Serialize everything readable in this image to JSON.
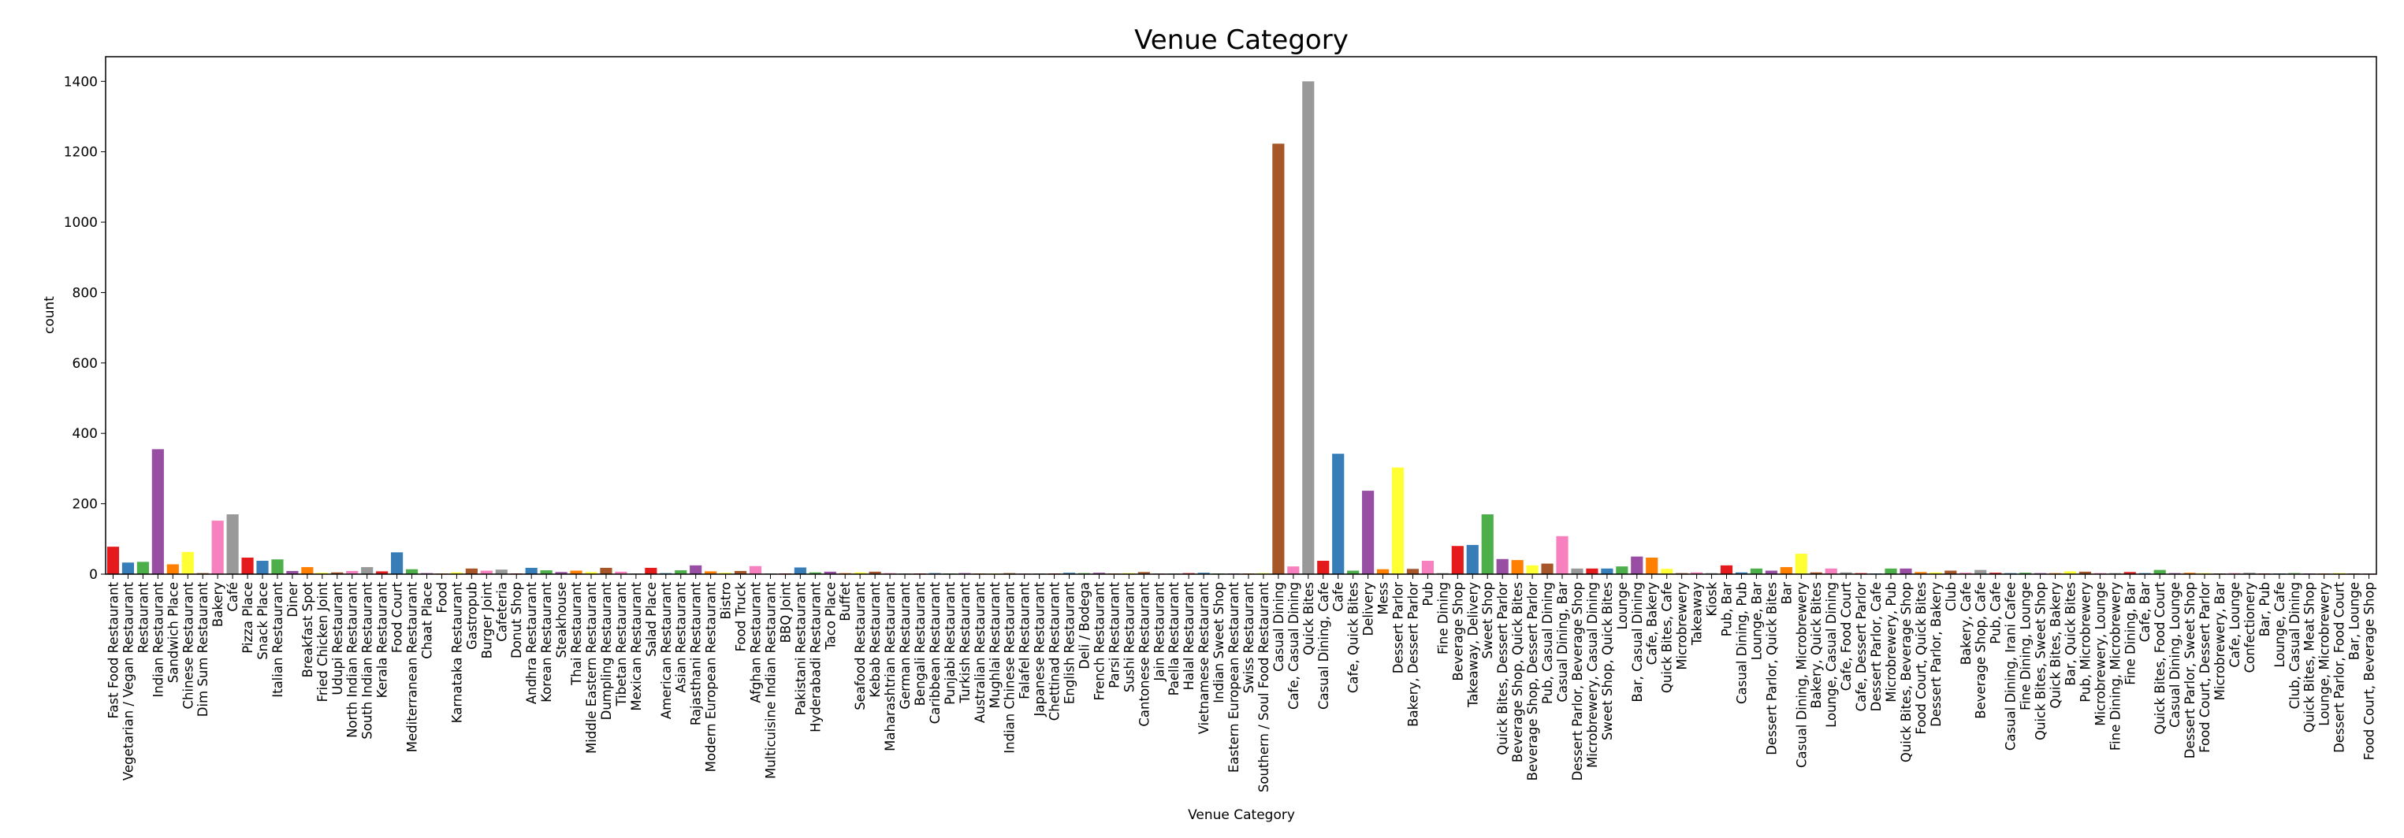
{
  "chart_data": {
    "type": "bar",
    "title": "Venue Category",
    "xlabel": "Venue Category",
    "ylabel": "count",
    "ylim": [
      0,
      1470
    ],
    "yticks": [
      0,
      200,
      400,
      600,
      800,
      1000,
      1200,
      1400
    ],
    "grid": false,
    "palette": [
      "#e41a1c",
      "#377eb8",
      "#4daf4a",
      "#984ea3",
      "#ff7f00",
      "#ffff33",
      "#a65628",
      "#f781bf",
      "#999999"
    ],
    "categories": [
      "Fast Food Restaurant",
      "Vegetarian / Vegan Restaurant",
      "Restaurant",
      "Indian Restaurant",
      "Sandwich Place",
      "Chinese Restaurant",
      "Dim Sum Restaurant",
      "Bakery",
      "Café",
      "Pizza Place",
      "Snack Place",
      "Italian Restaurant",
      "Diner",
      "Breakfast Spot",
      "Fried Chicken Joint",
      "Udupi Restaurant",
      "North Indian Restaurant",
      "South Indian Restaurant",
      "Kerala Restaurant",
      "Food Court",
      "Mediterranean Restaurant",
      "Chaat Place",
      "Food",
      "Karnataka Restaurant",
      "Gastropub",
      "Burger Joint",
      "Cafeteria",
      "Donut Shop",
      "Andhra Restaurant",
      "Korean Restaurant",
      "Steakhouse",
      "Thai Restaurant",
      "Middle Eastern Restaurant",
      "Dumpling Restaurant",
      "Tibetan Restaurant",
      "Mexican Restaurant",
      "Salad Place",
      "American Restaurant",
      "Asian Restaurant",
      "Rajasthani Restaurant",
      "Modern European Restaurant",
      "Bistro",
      "Food Truck",
      "Afghan Restaurant",
      "Multicuisine Indian Restaurant",
      "BBQ Joint",
      "Pakistani Restaurant",
      "Hyderabadi Restaurant",
      "Taco Place",
      "Buffet",
      "Seafood Restaurant",
      "Kebab Restaurant",
      "Maharashtrian Restaurant",
      "German Restaurant",
      "Bengali Restaurant",
      "Caribbean Restaurant",
      "Punjabi Restaurant",
      "Turkish Restaurant",
      "Australian Restaurant",
      "Mughlai Restaurant",
      "Indian Chinese Restaurant",
      "Falafel Restaurant",
      "Japanese Restaurant",
      "Chettinad Restaurant",
      "English Restaurant",
      "Deli / Bodega",
      "French Restaurant",
      "Parsi Restaurant",
      "Sushi Restaurant",
      "Cantonese Restaurant",
      "Jain Restaurant",
      "Paella Restaurant",
      "Halal Restaurant",
      "Vietnamese Restaurant",
      "Indian Sweet Shop",
      "Eastern European Restaurant",
      "Swiss Restaurant",
      "Southern / Soul Food Restaurant",
      "Casual Dining",
      "Cafe, Casual Dining",
      "Quick Bites",
      "Casual Dining, Cafe",
      "Cafe",
      "Cafe, Quick Bites",
      "Delivery",
      "Mess",
      "Dessert Parlor",
      "Bakery, Dessert Parlor",
      "Pub",
      "Fine Dining",
      "Beverage Shop",
      "Takeaway, Delivery",
      "Sweet Shop",
      "Quick Bites, Dessert Parlor",
      "Beverage Shop, Quick Bites",
      "Beverage Shop, Dessert Parlor",
      "Pub, Casual Dining",
      "Casual Dining, Bar",
      "Dessert Parlor, Beverage Shop",
      "Microbrewery, Casual Dining",
      "Sweet Shop, Quick Bites",
      "Lounge",
      "Bar, Casual Dining",
      "Cafe, Bakery",
      "Quick Bites, Cafe",
      "Microbrewery",
      "Takeaway",
      "Kiosk",
      "Pub, Bar",
      "Casual Dining, Pub",
      "Lounge, Bar",
      "Dessert Parlor, Quick Bites",
      "Bar",
      "Casual Dining, Microbrewery",
      "Bakery, Quick Bites",
      "Lounge, Casual Dining",
      "Cafe, Food Court",
      "Cafe, Dessert Parlor",
      "Dessert Parlor, Cafe",
      "Microbrewery, Pub",
      "Quick Bites, Beverage Shop",
      "Food Court, Quick Bites",
      "Dessert Parlor, Bakery",
      "Club",
      "Bakery, Cafe",
      "Beverage Shop, Cafe",
      "Pub, Cafe",
      "Casual Dining, Irani Cafee",
      "Fine Dining, Lounge",
      "Quick Bites, Sweet Shop",
      "Quick Bites, Bakery",
      "Bar, Quick Bites",
      "Pub, Microbrewery",
      "Microbrewery, Lounge",
      "Fine Dining, Microbrewery",
      "Fine Dining, Bar",
      "Cafe, Bar",
      "Quick Bites, Food Court",
      "Casual Dining, Lounge",
      "Dessert Parlor, Sweet Shop",
      "Food Court, Dessert Parlor",
      "Microbrewery, Bar",
      "Cafe, Lounge",
      "Confectionery",
      "Bar, Pub",
      "Lounge, Cafe",
      "Club, Casual Dining",
      "Quick Bites, Meat Shop",
      "Lounge, Microbrewery",
      "Dessert Parlor, Food Court",
      "Bar, Lounge",
      "Food Court, Beverage Shop"
    ],
    "values": [
      78,
      33,
      35,
      355,
      28,
      63,
      3,
      152,
      170,
      47,
      38,
      42,
      9,
      20,
      4,
      5,
      9,
      20,
      8,
      62,
      14,
      3,
      2,
      5,
      16,
      10,
      13,
      2,
      18,
      11,
      6,
      10,
      6,
      18,
      7,
      2,
      18,
      3,
      11,
      25,
      8,
      4,
      9,
      23,
      2,
      2,
      19,
      5,
      7,
      3,
      5,
      7,
      3,
      2,
      2,
      3,
      2,
      3,
      2,
      2,
      3,
      2,
      2,
      2,
      4,
      3,
      4,
      2,
      3,
      6,
      2,
      2,
      3,
      4,
      2,
      2,
      2,
      3,
      1223,
      22,
      1400,
      38,
      342,
      10,
      237,
      14,
      303,
      15,
      38,
      3,
      80,
      83,
      170,
      43,
      40,
      25,
      30,
      108,
      16,
      16,
      16,
      22,
      50,
      47,
      15,
      3,
      5,
      3,
      25,
      5,
      16,
      10,
      20,
      58,
      5,
      16,
      5,
      3,
      2,
      16,
      16,
      6,
      5,
      10,
      4,
      12,
      4,
      3,
      4,
      3,
      3,
      8,
      7,
      3,
      3,
      6,
      3,
      12,
      3,
      4,
      3,
      2,
      3,
      4,
      2,
      2,
      3,
      2,
      2,
      3,
      2,
      2
    ]
  }
}
